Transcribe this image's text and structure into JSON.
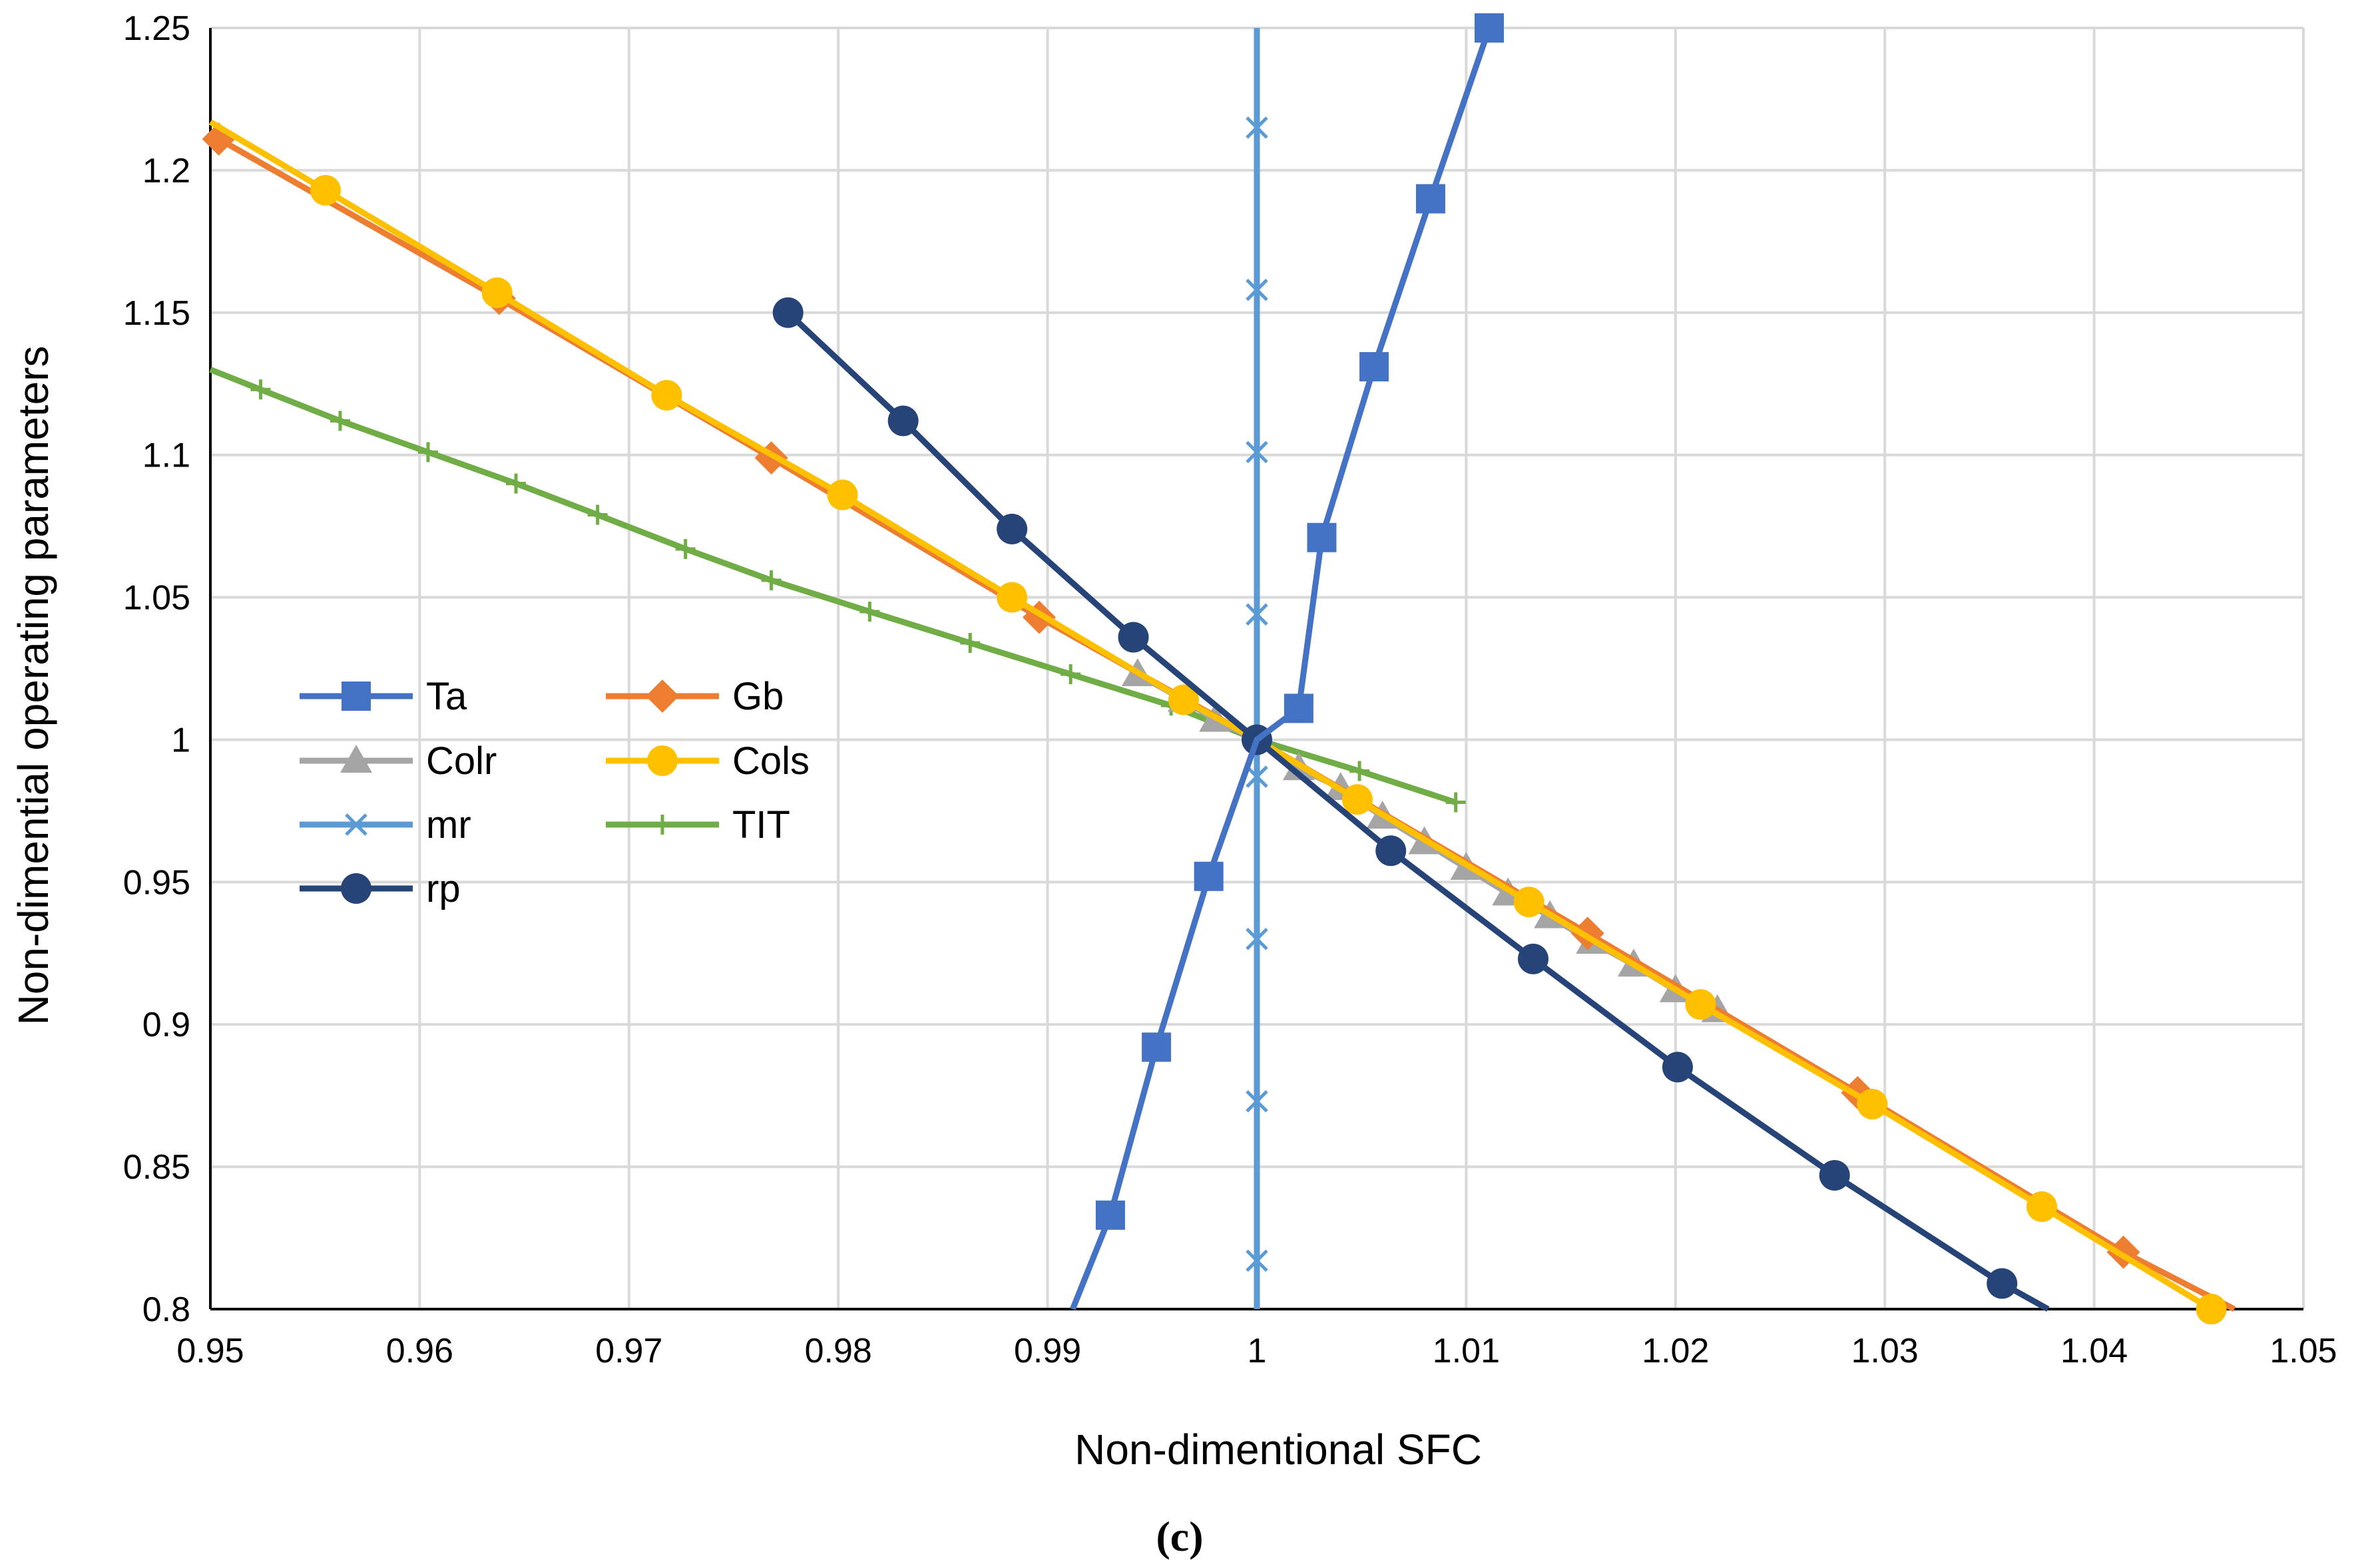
{
  "chart_data": {
    "type": "line",
    "title": "",
    "xlabel": "Non-dimentional SFC",
    "ylabel": "Non-dimential operating parameters",
    "caption": "(c)",
    "xlim": [
      0.95,
      1.05
    ],
    "ylim": [
      0.8,
      1.25
    ],
    "xticks": [
      "0.95",
      "0.96",
      "0.97",
      "0.98",
      "0.99",
      "1",
      "1.01",
      "1.02",
      "1.03",
      "1.04",
      "1.05"
    ],
    "yticks": [
      "0.8",
      "0.85",
      "0.9",
      "0.95",
      "1",
      "1.05",
      "1.1",
      "1.15",
      "1.2",
      "1.25"
    ],
    "grid": true,
    "legend_position": "middle-left",
    "series": [
      {
        "name": "Ta",
        "color": "#4472C4",
        "marker": "square",
        "line_points": [
          [
            0.9912,
            0.8
          ],
          [
            0.993,
            0.833
          ],
          [
            0.9952,
            0.892
          ],
          [
            0.9977,
            0.952
          ],
          [
            1.0,
            1.0
          ],
          [
            1.002,
            1.011
          ],
          [
            1.0031,
            1.071
          ],
          [
            1.0056,
            1.131
          ],
          [
            1.0083,
            1.19
          ],
          [
            1.0111,
            1.25
          ]
        ],
        "markers": [
          [
            0.993,
            0.833
          ],
          [
            0.9952,
            0.892
          ],
          [
            0.9977,
            0.952
          ],
          [
            1.002,
            1.011
          ],
          [
            1.0031,
            1.071
          ],
          [
            1.0056,
            1.131
          ],
          [
            1.0083,
            1.19
          ],
          [
            1.0111,
            1.25
          ]
        ]
      },
      {
        "name": "Gb",
        "color": "#ED7D31",
        "marker": "diamond",
        "line_points": [
          [
            0.9504,
            1.211
          ],
          [
            0.9638,
            1.155
          ],
          [
            0.9768,
            1.099
          ],
          [
            0.9896,
            1.043
          ],
          [
            1.0,
            1.0
          ],
          [
            1.0158,
            0.932
          ],
          [
            1.0287,
            0.876
          ],
          [
            1.0414,
            0.82
          ],
          [
            1.0467,
            0.8
          ]
        ],
        "markers": [
          [
            0.9504,
            1.211
          ],
          [
            0.9638,
            1.155
          ],
          [
            0.9768,
            1.099
          ],
          [
            0.9896,
            1.043
          ],
          [
            1.0158,
            0.932
          ],
          [
            1.0287,
            0.876
          ],
          [
            1.0414,
            0.82
          ]
        ]
      },
      {
        "name": "Colr",
        "color": "#A5A5A5",
        "marker": "triangle",
        "line_points": [
          [
            0.9943,
            1.023
          ],
          [
            0.9965,
            1.014
          ],
          [
            0.998,
            1.007
          ],
          [
            1.0,
            1.0
          ],
          [
            1.002,
            0.99
          ],
          [
            1.004,
            0.983
          ],
          [
            1.006,
            0.973
          ],
          [
            1.008,
            0.964
          ],
          [
            1.01,
            0.955
          ],
          [
            1.012,
            0.946
          ],
          [
            1.014,
            0.938
          ],
          [
            1.016,
            0.929
          ],
          [
            1.018,
            0.921
          ],
          [
            1.02,
            0.912
          ],
          [
            1.022,
            0.905
          ]
        ],
        "markers": [
          [
            0.9943,
            1.023
          ],
          [
            0.9965,
            1.014
          ],
          [
            0.998,
            1.007
          ],
          [
            1.002,
            0.99
          ],
          [
            1.004,
            0.983
          ],
          [
            1.006,
            0.973
          ],
          [
            1.008,
            0.964
          ],
          [
            1.01,
            0.955
          ],
          [
            1.012,
            0.946
          ],
          [
            1.014,
            0.938
          ],
          [
            1.016,
            0.929
          ],
          [
            1.018,
            0.921
          ],
          [
            1.02,
            0.912
          ],
          [
            1.022,
            0.905
          ]
        ]
      },
      {
        "name": "Cols",
        "color": "#FFC000",
        "marker": "circle",
        "line_points": [
          [
            0.95,
            1.217
          ],
          [
            0.9555,
            1.193
          ],
          [
            0.9637,
            1.157
          ],
          [
            0.9718,
            1.121
          ],
          [
            0.9802,
            1.086
          ],
          [
            0.9883,
            1.05
          ],
          [
            0.9965,
            1.014
          ],
          [
            1.0,
            1.0
          ],
          [
            1.0048,
            0.979
          ],
          [
            1.013,
            0.943
          ],
          [
            1.0212,
            0.907
          ],
          [
            1.0294,
            0.872
          ],
          [
            1.0375,
            0.836
          ],
          [
            1.0456,
            0.8
          ]
        ],
        "markers": [
          [
            0.9555,
            1.193
          ],
          [
            0.9637,
            1.157
          ],
          [
            0.9718,
            1.121
          ],
          [
            0.9802,
            1.086
          ],
          [
            0.9883,
            1.05
          ],
          [
            0.9965,
            1.014
          ],
          [
            1.0048,
            0.979
          ],
          [
            1.013,
            0.943
          ],
          [
            1.0212,
            0.907
          ],
          [
            1.0294,
            0.872
          ],
          [
            1.0375,
            0.836
          ],
          [
            1.0456,
            0.8
          ]
        ]
      },
      {
        "name": "mr",
        "color": "#5B9BD5",
        "marker": "x",
        "line_points": [
          [
            1.0,
            0.8
          ],
          [
            1.0,
            1.25
          ]
        ],
        "markers": [
          [
            1.0,
            0.817
          ],
          [
            1.0,
            0.873
          ],
          [
            1.0,
            0.93
          ],
          [
            1.0,
            0.987
          ],
          [
            1.0,
            1.044
          ],
          [
            1.0,
            1.101
          ],
          [
            1.0,
            1.158
          ],
          [
            1.0,
            1.215
          ]
        ]
      },
      {
        "name": "TIT",
        "color": "#70AD47",
        "marker": "plus",
        "line_points": [
          [
            0.95,
            1.13
          ],
          [
            0.9524,
            1.123
          ],
          [
            0.9562,
            1.112
          ],
          [
            0.9604,
            1.101
          ],
          [
            0.9646,
            1.09
          ],
          [
            0.9685,
            1.079
          ],
          [
            0.9727,
            1.067
          ],
          [
            0.9768,
            1.056
          ],
          [
            0.9815,
            1.045
          ],
          [
            0.9863,
            1.034
          ],
          [
            0.9911,
            1.023
          ],
          [
            0.9959,
            1.012
          ],
          [
            1.0,
            1.0
          ],
          [
            1.0049,
            0.989
          ],
          [
            1.0095,
            0.978
          ]
        ],
        "markers": [
          [
            0.9524,
            1.123
          ],
          [
            0.9562,
            1.112
          ],
          [
            0.9604,
            1.101
          ],
          [
            0.9646,
            1.09
          ],
          [
            0.9685,
            1.079
          ],
          [
            0.9727,
            1.067
          ],
          [
            0.9768,
            1.056
          ],
          [
            0.9815,
            1.045
          ],
          [
            0.9863,
            1.034
          ],
          [
            0.9911,
            1.023
          ],
          [
            0.9959,
            1.012
          ],
          [
            1.0049,
            0.989
          ],
          [
            1.0095,
            0.978
          ]
        ]
      },
      {
        "name": "rp",
        "color": "#264478",
        "marker": "circle",
        "line_points": [
          [
            0.9776,
            1.15
          ],
          [
            0.9831,
            1.112
          ],
          [
            0.9883,
            1.074
          ],
          [
            0.9941,
            1.036
          ],
          [
            1.0,
            1.0
          ],
          [
            1.0064,
            0.961
          ],
          [
            1.0132,
            0.923
          ],
          [
            1.0201,
            0.885
          ],
          [
            1.0276,
            0.847
          ],
          [
            1.0356,
            0.809
          ],
          [
            1.0378,
            0.8
          ]
        ],
        "markers": [
          [
            0.9776,
            1.15
          ],
          [
            0.9831,
            1.112
          ],
          [
            0.9883,
            1.074
          ],
          [
            0.9941,
            1.036
          ],
          [
            1.0,
            1.0
          ],
          [
            1.0064,
            0.961
          ],
          [
            1.0132,
            0.923
          ],
          [
            1.0201,
            0.885
          ],
          [
            1.0276,
            0.847
          ],
          [
            1.0356,
            0.809
          ]
        ]
      }
    ],
    "legend_order": [
      "Ta",
      "Gb",
      "Colr",
      "Cols",
      "mr",
      "TIT",
      "rp"
    ]
  }
}
